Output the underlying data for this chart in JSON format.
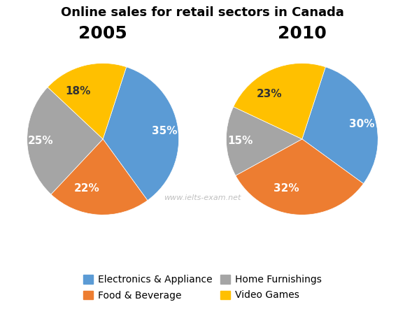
{
  "title": "Online sales for retail sectors in Canada",
  "year_2005": {
    "label": "2005",
    "values": [
      35,
      22,
      25,
      18
    ],
    "pct_labels": [
      "35%",
      "22%",
      "25%",
      "18%"
    ],
    "colors": [
      "#5B9BD5",
      "#ED7D31",
      "#A5A5A5",
      "#FFC000"
    ],
    "startangle": 72,
    "counterclock": false
  },
  "year_2010": {
    "label": "2010",
    "values": [
      30,
      32,
      15,
      23
    ],
    "pct_labels": [
      "30%",
      "32%",
      "15%",
      "23%"
    ],
    "colors": [
      "#5B9BD5",
      "#ED7D31",
      "#A5A5A5",
      "#FFC000"
    ],
    "startangle": 72,
    "counterclock": false
  },
  "legend_labels": [
    "Electronics & Appliance",
    "Food & Beverage",
    "Home Furnishings",
    "Video Games"
  ],
  "legend_colors": [
    "#5B9BD5",
    "#ED7D31",
    "#A5A5A5",
    "#FFC000"
  ],
  "watermark": "www.ielts-exam.net",
  "watermark_color": "#C0C0C0",
  "title_fontsize": 13,
  "year_fontsize": 18,
  "pct_fontsize": 11,
  "legend_fontsize": 10,
  "label_colors": [
    "white",
    "white",
    "white",
    "#333333"
  ]
}
